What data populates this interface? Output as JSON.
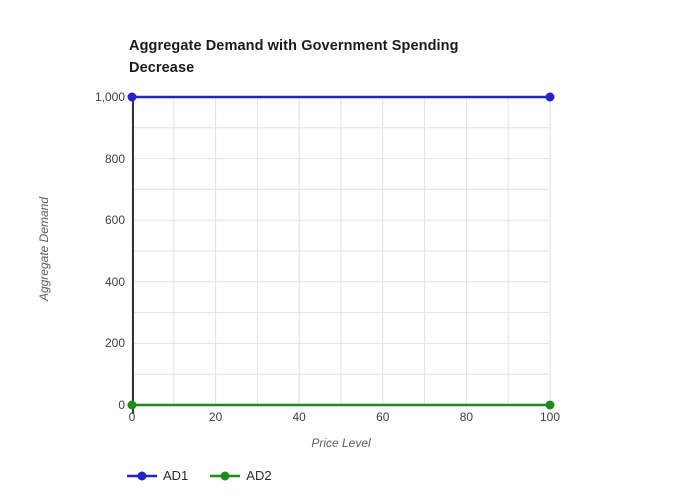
{
  "chart_data": {
    "type": "line",
    "title": "Aggregate Demand with Government Spending Decrease",
    "xlabel": "Price Level",
    "ylabel": "Aggregate Demand",
    "x": [
      0,
      100
    ],
    "series": [
      {
        "name": "AD1",
        "values": [
          1000,
          1000
        ],
        "color": "#2323cd"
      },
      {
        "name": "AD2",
        "values": [
          0,
          0
        ],
        "color": "#1d8c1d"
      }
    ],
    "xlim": [
      0,
      100
    ],
    "ylim": [
      0,
      1000
    ],
    "x_ticks": [
      0,
      20,
      40,
      60,
      80,
      100
    ],
    "x_tick_labels": [
      "0",
      "20",
      "40",
      "60",
      "80",
      "100"
    ],
    "y_ticks": [
      0,
      200,
      400,
      600,
      800,
      1000
    ],
    "y_tick_labels": [
      "0",
      "200",
      "400",
      "600",
      "800",
      "1,000"
    ],
    "x_grid_step": 10,
    "y_grid_step": 100,
    "grid_on": true,
    "grid_color": "#e2e2e2",
    "axis_line_color": "#333333",
    "legend_position": "bottom-left",
    "marker": "circle",
    "background_color": "#ffffff"
  }
}
